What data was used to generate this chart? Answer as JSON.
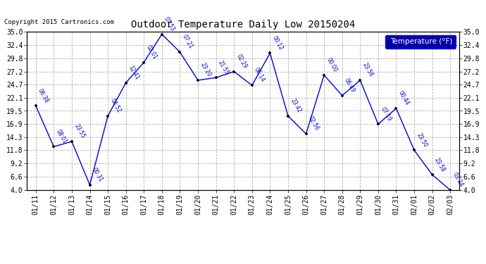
{
  "title": "Outdoor Temperature Daily Low 20150204",
  "copyright": "Copyright 2015 Cartronics.com",
  "legend_label": "Temperature (°F)",
  "x_labels": [
    "01/11",
    "01/12",
    "01/13",
    "01/14",
    "01/15",
    "01/16",
    "01/17",
    "01/18",
    "01/19",
    "01/20",
    "01/21",
    "01/22",
    "01/23",
    "01/24",
    "01/25",
    "01/26",
    "01/27",
    "01/28",
    "01/29",
    "01/30",
    "01/31",
    "02/01",
    "02/02",
    "02/03"
  ],
  "y_values": [
    20.5,
    12.5,
    13.5,
    5.0,
    18.5,
    25.0,
    29.0,
    34.5,
    31.0,
    25.5,
    26.0,
    27.2,
    24.5,
    30.8,
    18.5,
    15.0,
    26.5,
    22.5,
    25.5,
    16.9,
    20.0,
    11.8,
    7.0,
    4.0
  ],
  "time_labels": [
    "06:38",
    "08:01",
    "23:55",
    "00:31",
    "04:52",
    "12:41",
    "02:01",
    "07:53",
    "07:21",
    "23:20",
    "21:55",
    "02:29",
    "06:14",
    "00:12",
    "23:42",
    "02:56",
    "00:00",
    "06:49",
    "23:56",
    "07:19",
    "00:44",
    "23:50",
    "23:58",
    "03:24"
  ],
  "ylim": [
    4.0,
    35.0
  ],
  "yticks": [
    4.0,
    6.6,
    9.2,
    11.8,
    14.3,
    16.9,
    19.5,
    22.1,
    24.7,
    27.2,
    29.8,
    32.4,
    35.0
  ],
  "line_color": "#0000cc",
  "marker_color": "#000000",
  "bg_color": "#ffffff",
  "grid_color": "#b0b0b0",
  "title_color": "#000000",
  "label_color": "#0000cc",
  "legend_bg": "#0000aa",
  "legend_fg": "#ffffff"
}
